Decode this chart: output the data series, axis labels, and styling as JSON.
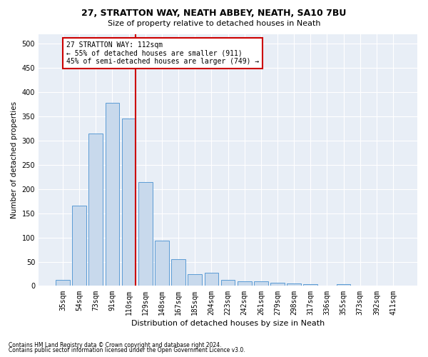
{
  "title1": "27, STRATTON WAY, NEATH ABBEY, NEATH, SA10 7BU",
  "title2": "Size of property relative to detached houses in Neath",
  "xlabel": "Distribution of detached houses by size in Neath",
  "ylabel": "Number of detached properties",
  "categories": [
    "35sqm",
    "54sqm",
    "73sqm",
    "91sqm",
    "110sqm",
    "129sqm",
    "148sqm",
    "167sqm",
    "185sqm",
    "204sqm",
    "223sqm",
    "242sqm",
    "261sqm",
    "279sqm",
    "298sqm",
    "317sqm",
    "336sqm",
    "355sqm",
    "373sqm",
    "392sqm",
    "411sqm"
  ],
  "values": [
    12,
    165,
    315,
    378,
    345,
    215,
    93,
    55,
    24,
    27,
    13,
    10,
    10,
    7,
    5,
    4,
    0,
    4,
    1,
    1,
    1
  ],
  "bar_color": "#c8d9ec",
  "bar_edge_color": "#5b9bd5",
  "vline_index": 4,
  "vline_color": "#cc0000",
  "annotation_text": "27 STRATTON WAY: 112sqm\n← 55% of detached houses are smaller (911)\n45% of semi-detached houses are larger (749) →",
  "annotation_box_color": "#ffffff",
  "annotation_box_edge": "#cc0000",
  "footnote1": "Contains HM Land Registry data © Crown copyright and database right 2024.",
  "footnote2": "Contains public sector information licensed under the Open Government Licence v3.0.",
  "background_color": "#e8eef6",
  "ylim": [
    0,
    520
  ],
  "yticks": [
    0,
    50,
    100,
    150,
    200,
    250,
    300,
    350,
    400,
    450,
    500
  ],
  "title1_fontsize": 9,
  "title2_fontsize": 8,
  "xlabel_fontsize": 8,
  "ylabel_fontsize": 7.5,
  "tick_fontsize": 7,
  "annotation_fontsize": 7,
  "footnote_fontsize": 5.5
}
